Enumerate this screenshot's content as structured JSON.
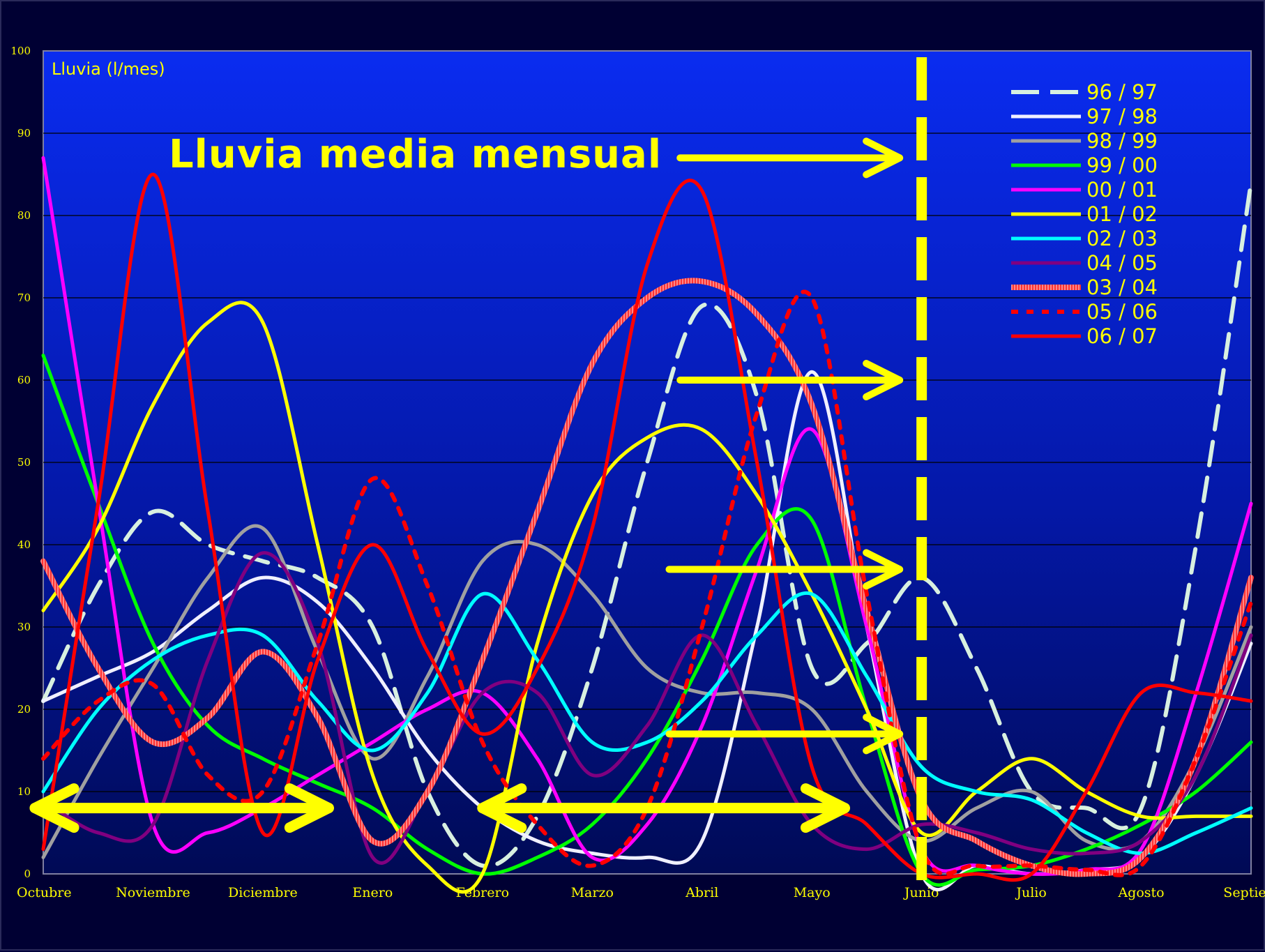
{
  "chart_data": {
    "type": "line",
    "title": "Lluvia media mensual",
    "ylabel": "Lluvia (l/mes)",
    "xlabel": "",
    "ylim": [
      0,
      100
    ],
    "yticks": [
      0,
      10,
      20,
      30,
      40,
      50,
      60,
      70,
      80,
      90,
      100
    ],
    "grid": true,
    "legend_position": "top-right",
    "categories": [
      "Octubre",
      "Noviembre",
      "Diciembre",
      "Enero",
      "Febrero",
      "Marzo",
      "Abril",
      "Mayo",
      "Junio",
      "Julio",
      "Agosto",
      "Septiem"
    ],
    "x": [
      0,
      0.5,
      1,
      1.5,
      2,
      2.5,
      3,
      3.5,
      4,
      4.5,
      5,
      5.5,
      6,
      6.5,
      7,
      7.5,
      8,
      8.5,
      9,
      9.5,
      10,
      10.5,
      11
    ],
    "series": [
      {
        "name": "96 / 97",
        "color": "#d8f0e0",
        "style": "dashed",
        "values": [
          21,
          35,
          44,
          40,
          38,
          36,
          30,
          10,
          1,
          7,
          25,
          50,
          69,
          58,
          25,
          28,
          36,
          25,
          10,
          8,
          8,
          40,
          84
        ]
      },
      {
        "name": "97 / 98",
        "color": "#f0f0ff",
        "style": "solid",
        "values": [
          21,
          24,
          27,
          32,
          36,
          33,
          25,
          15,
          8,
          4,
          2.5,
          2,
          4,
          30,
          61,
          30,
          0,
          1,
          0,
          0.5,
          2,
          12,
          28
        ]
      },
      {
        "name": "98 / 99",
        "color": "#a0a0a0",
        "style": "solid",
        "values": [
          2,
          14,
          25,
          36,
          42,
          27,
          14,
          24,
          38,
          40,
          34,
          25,
          22,
          22,
          20,
          10,
          4,
          8,
          10,
          4,
          4,
          14,
          30
        ]
      },
      {
        "name": "99 / 00",
        "color": "#00ff00",
        "style": "solid",
        "values": [
          63,
          45,
          28,
          18,
          14,
          11,
          8,
          3,
          0,
          2,
          6,
          14,
          26,
          40,
          43,
          20,
          0,
          0.5,
          1,
          3,
          6,
          10,
          16
        ]
      },
      {
        "name": "00 / 01",
        "color": "#ff00ff",
        "style": "solid",
        "values": [
          87,
          45,
          6,
          5,
          8,
          12,
          16,
          20,
          22,
          14,
          2,
          6,
          18,
          37,
          54,
          30,
          3,
          1,
          0,
          0.5,
          3,
          22,
          45
        ]
      },
      {
        "name": "01 / 02",
        "color": "#ffff00",
        "style": "solid",
        "values": [
          32,
          42,
          57,
          67,
          67,
          40,
          12,
          1,
          0,
          28,
          46,
          53,
          54,
          46,
          34,
          20,
          5,
          10,
          14,
          10,
          7,
          7,
          7
        ]
      },
      {
        "name": "02 / 03",
        "color": "#00ffff",
        "style": "solid",
        "values": [
          10,
          20,
          26,
          29,
          29,
          21,
          15,
          22,
          34,
          26,
          16,
          16,
          21,
          29,
          34,
          24,
          13,
          10,
          9,
          5,
          2.5,
          5,
          8
        ]
      },
      {
        "name": "04 / 05",
        "color": "#800080",
        "style": "solid",
        "values": [
          9,
          5,
          6,
          26,
          39,
          28,
          2,
          10,
          22,
          22,
          12,
          18,
          29,
          18,
          6,
          3,
          6,
          5,
          3,
          2.5,
          4,
          12,
          29
        ]
      },
      {
        "name": "03 / 04",
        "color": "#ff5555",
        "style": "hatched",
        "values": [
          38,
          25,
          16,
          19,
          27,
          19,
          4,
          10,
          26,
          44,
          62,
          70,
          72,
          68,
          57,
          32,
          9,
          4,
          1,
          0,
          2,
          14,
          36
        ]
      },
      {
        "name": "05 / 06",
        "color": "#ff0000",
        "style": "dotted",
        "values": [
          14,
          21,
          23,
          12,
          10,
          28,
          48,
          35,
          16,
          6,
          1,
          8,
          30,
          56,
          70,
          34,
          3,
          1,
          1,
          0.5,
          1,
          14,
          33
        ]
      },
      {
        "name": "06 / 07",
        "color": "#ff0000",
        "style": "solid",
        "values": [
          3,
          45,
          85,
          44,
          5,
          26,
          40,
          27,
          17,
          25,
          42,
          74,
          83,
          50,
          13,
          6,
          0,
          0,
          0,
          10,
          22,
          22,
          21
        ]
      }
    ],
    "annotations": {
      "vertical_line_x": 8,
      "right_arrows": [
        {
          "y": 87,
          "x_from": 5.8,
          "x_to": 7.8
        },
        {
          "y": 60,
          "x_from": 5.8,
          "x_to": 7.8
        },
        {
          "y": 37,
          "x_from": 5.7,
          "x_to": 7.8
        },
        {
          "y": 17,
          "x_from": 5.7,
          "x_to": 7.8
        }
      ],
      "double_arrows": [
        {
          "y": 8,
          "x_from": -0.1,
          "x_to": 2.6
        },
        {
          "y": 8,
          "x_from": 4.0,
          "x_to": 7.3
        }
      ],
      "annotation_color": "#ffff00"
    }
  }
}
